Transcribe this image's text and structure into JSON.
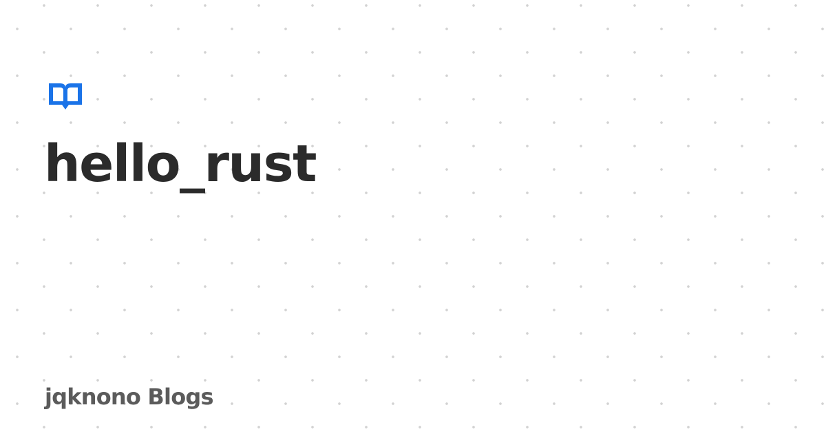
{
  "logo": {
    "icon": "open-book-icon",
    "color": "#1a73e8"
  },
  "post": {
    "title": "hello_rust"
  },
  "site": {
    "name": "jqknono Blogs"
  },
  "theme": {
    "background": "#ffffff",
    "title_color": "#2b2b2b",
    "site_name_color": "#5b5b5b",
    "dot_color": "#d2d2d2"
  }
}
